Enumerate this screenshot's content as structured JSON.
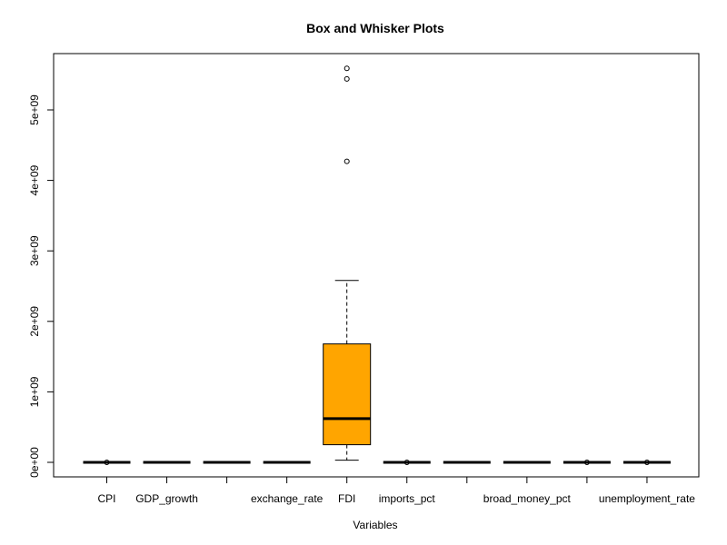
{
  "chart_data": {
    "type": "boxplot",
    "title": "Box and Whisker Plots",
    "xlabel": "Variables",
    "ylabel": "",
    "ylim": [
      -30000000,
      5900000000
    ],
    "yticks": [
      0,
      1000000000,
      2000000000,
      3000000000,
      4000000000,
      5000000000
    ],
    "ytick_labels": [
      "0e+00",
      "1e+09",
      "2e+09",
      "3e+09",
      "4e+09",
      "5e+09"
    ],
    "categories": [
      "CPI",
      "GDP_growth",
      "",
      "exchange_rate",
      "FDI",
      "imports_pct",
      "",
      "broad_money_pct",
      "",
      "unemployment_rate"
    ],
    "box_fill": "#FFA500",
    "outline_color": "#000000",
    "boxes": [
      {
        "min": 0,
        "q1": 0,
        "median": 0,
        "q3": 0,
        "max": 0,
        "outliers": [
          0
        ]
      },
      {
        "min": 0,
        "q1": 0,
        "median": 0,
        "q3": 0,
        "max": 0,
        "outliers": []
      },
      {
        "min": 0,
        "q1": 0,
        "median": 0,
        "q3": 0,
        "max": 0,
        "outliers": []
      },
      {
        "min": 0,
        "q1": 0,
        "median": 0,
        "q3": 0,
        "max": 0,
        "outliers": []
      },
      {
        "min": 30000000,
        "q1": 250000000,
        "median": 620000000,
        "q3": 1680000000,
        "max": 2580000000,
        "outliers": [
          4270000000,
          5440000000,
          5590000000
        ]
      },
      {
        "min": 0,
        "q1": 0,
        "median": 0,
        "q3": 0,
        "max": 0,
        "outliers": [
          0
        ]
      },
      {
        "min": 0,
        "q1": 0,
        "median": 0,
        "q3": 0,
        "max": 0,
        "outliers": []
      },
      {
        "min": 0,
        "q1": 0,
        "median": 0,
        "q3": 0,
        "max": 0,
        "outliers": []
      },
      {
        "min": 0,
        "q1": 0,
        "median": 0,
        "q3": 0,
        "max": 0,
        "outliers": [
          0
        ]
      },
      {
        "min": 0,
        "q1": 0,
        "median": 0,
        "q3": 0,
        "max": 0,
        "outliers": [
          0
        ]
      }
    ]
  }
}
